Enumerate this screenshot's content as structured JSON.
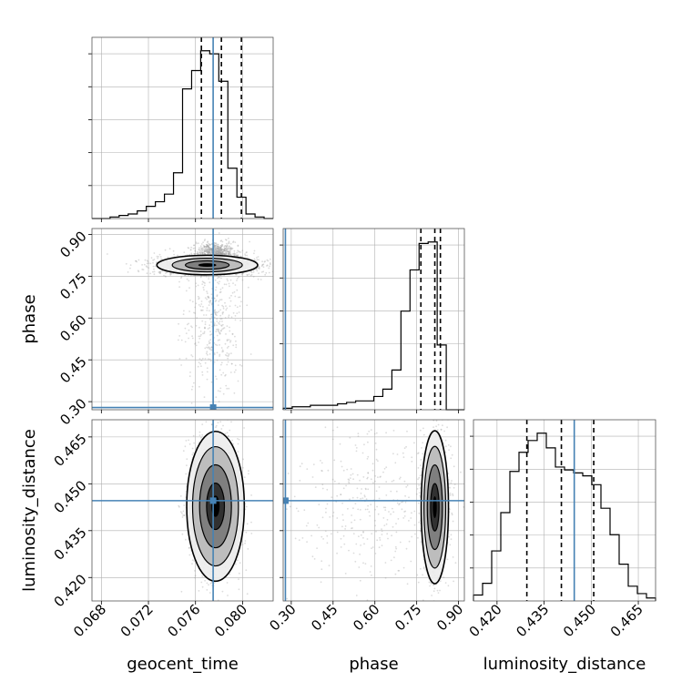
{
  "chart_data": {
    "type": "corner",
    "parameters": [
      "geocent_time",
      "phase",
      "luminosity_distance"
    ],
    "axis_labels": {
      "geocent_time": "geocent_time",
      "phase": "phase",
      "luminosity_distance": "luminosity_distance"
    },
    "ranges": {
      "geocent_time": [
        0.0672,
        0.0826
      ],
      "phase": [
        0.271,
        0.921
      ],
      "luminosity_distance": [
        0.4125,
        0.4705
      ]
    },
    "ticks": {
      "geocent_time": [
        "0.068",
        "0.072",
        "0.076",
        "0.080"
      ],
      "phase": [
        "0.30",
        "0.45",
        "0.60",
        "0.75",
        "0.90"
      ],
      "luminosity_distance": [
        "0.420",
        "0.435",
        "0.450",
        "0.465"
      ]
    },
    "truths": {
      "geocent_time": 0.0775,
      "phase": 0.279,
      "luminosity_distance": 0.4446
    },
    "quantiles": {
      "geocent_time": [
        0.0765,
        0.0782,
        0.0799
      ],
      "phase": [
        0.765,
        0.815,
        0.835
      ],
      "luminosity_distance": [
        0.4295,
        0.4405,
        0.4508
      ]
    },
    "histograms": {
      "geocent_time": {
        "x_start": 0.0672,
        "x_end": 0.0826,
        "values": [
          0,
          0,
          1,
          2,
          3,
          5,
          8,
          11,
          16,
          30,
          85,
          97,
          110,
          108,
          90,
          33,
          14,
          3,
          1,
          0
        ]
      },
      "phase": {
        "x_start": 0.271,
        "x_end": 0.921,
        "values": [
          1,
          2,
          2,
          3,
          3,
          3,
          4,
          5,
          6,
          6,
          9,
          14,
          27,
          67,
          95,
          113,
          114,
          44,
          0,
          0
        ]
      },
      "luminosity_distance": {
        "x_start": 0.4125,
        "x_end": 0.4705,
        "values": [
          4,
          12,
          34,
          60,
          88,
          101,
          109,
          114,
          104,
          91,
          89,
          87,
          85,
          79,
          63,
          45,
          25,
          10,
          5,
          2
        ]
      }
    },
    "pairs": [
      {
        "x": "geocent_time",
        "y": "phase",
        "modes": [
          {
            "cx": 0.077,
            "cy": 0.79,
            "sx": 0.0022,
            "sy": 0.018,
            "weight": 0.55
          },
          {
            "cx": 0.0777,
            "cy": 0.83,
            "sx": 0.0008,
            "sy": 0.02,
            "weight": 0.3
          },
          {
            "cx": 0.0776,
            "cy": 0.58,
            "sx": 0.0012,
            "sy": 0.13,
            "weight": 0.15
          }
        ],
        "contour_levels": [
          0.3,
          0.6,
          0.85
        ]
      },
      {
        "x": "geocent_time",
        "y": "luminosity_distance",
        "modes": [
          {
            "cx": 0.0777,
            "cy": 0.4428,
            "sx": 0.001,
            "sy": 0.0098,
            "weight": 1.0
          }
        ],
        "contour_levels": [
          0.25,
          0.6,
          0.85,
          0.95
        ]
      },
      {
        "x": "phase",
        "y": "luminosity_distance",
        "modes": [
          {
            "cx": 0.815,
            "cy": 0.4425,
            "sx": 0.02,
            "sy": 0.01,
            "weight": 0.85
          },
          {
            "cx": 0.6,
            "cy": 0.4425,
            "sx": 0.15,
            "sy": 0.015,
            "weight": 0.15
          }
        ],
        "contour_levels": [
          0.25,
          0.6,
          0.85,
          0.95
        ]
      }
    ],
    "colors": {
      "truth": "#4682b4",
      "hist": "#000000",
      "quantile": "#000000",
      "grid": "#b0b0b0",
      "scatter": "#9a9a9a"
    },
    "grid": true
  }
}
